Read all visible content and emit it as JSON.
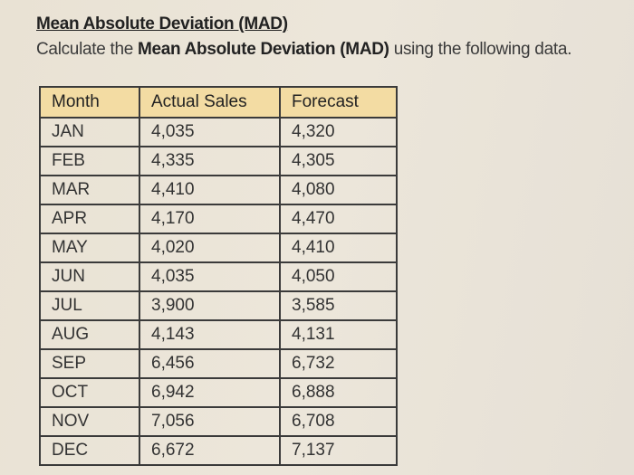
{
  "title": "Mean Absolute Deviation (MAD)",
  "instruction": {
    "prefix": "Calculate the ",
    "bold": "Mean Absolute Deviation (MAD)",
    "suffix": " using the following data."
  },
  "table": {
    "headers": [
      "Month",
      "Actual Sales",
      "Forecast"
    ],
    "rows": [
      [
        "JAN",
        "4,035",
        "4,320"
      ],
      [
        "FEB",
        "4,335",
        "4,305"
      ],
      [
        "MAR",
        "4,410",
        "4,080"
      ],
      [
        "APR",
        "4,170",
        "4,470"
      ],
      [
        "MAY",
        "4,020",
        "4,410"
      ],
      [
        "JUN",
        "4,035",
        "4,050"
      ],
      [
        "JUL",
        "3,900",
        "3,585"
      ],
      [
        "AUG",
        "4,143",
        "4,131"
      ],
      [
        "SEP",
        "6,456",
        "6,732"
      ],
      [
        "OCT",
        "6,942",
        "6,888"
      ],
      [
        "NOV",
        "7,056",
        "6,708"
      ],
      [
        "DEC",
        "6,672",
        "7,137"
      ]
    ]
  },
  "colors": {
    "header_bg": "#f3dca3",
    "page_bg": "#ebe4d7"
  }
}
